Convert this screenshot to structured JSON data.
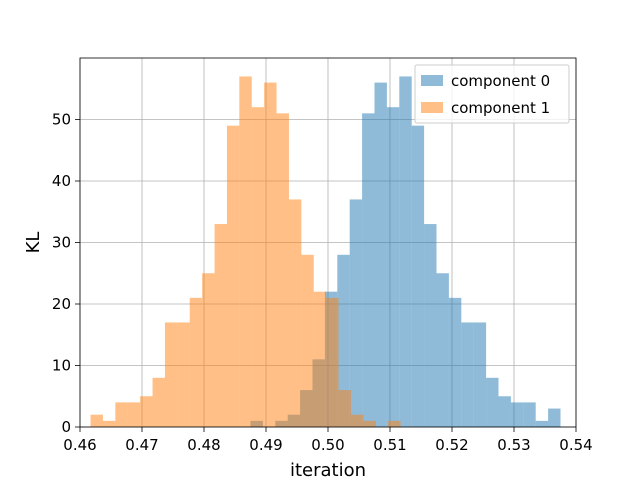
{
  "chart_data": {
    "type": "histogram",
    "title": "",
    "xlabel": "iteration",
    "ylabel": "KL",
    "xlim": [
      0.46,
      0.54
    ],
    "ylim": [
      0,
      60
    ],
    "xticks": [
      0.46,
      0.47,
      0.48,
      0.49,
      0.5,
      0.51,
      0.52,
      0.53,
      0.54
    ],
    "xtick_labels": [
      "0.46",
      "0.47",
      "0.48",
      "0.49",
      "0.50",
      "0.51",
      "0.52",
      "0.53",
      "0.54"
    ],
    "yticks": [
      0,
      10,
      20,
      30,
      40,
      50
    ],
    "ytick_labels": [
      "0",
      "10",
      "20",
      "30",
      "40",
      "50"
    ],
    "grid": true,
    "legend_position": "top-right",
    "series": [
      {
        "name": "component 0",
        "color": "#1f77b4",
        "opacity": 0.5,
        "bins": [
          [
            0.4875,
            0.4895,
            1
          ],
          [
            0.4895,
            0.4915,
            0
          ],
          [
            0.4915,
            0.4935,
            1
          ],
          [
            0.4935,
            0.4955,
            2
          ],
          [
            0.4955,
            0.4975,
            6
          ],
          [
            0.4975,
            0.4995,
            11
          ],
          [
            0.4995,
            0.5015,
            22
          ],
          [
            0.5015,
            0.5035,
            28
          ],
          [
            0.5035,
            0.5055,
            37
          ],
          [
            0.5055,
            0.5075,
            51
          ],
          [
            0.5075,
            0.5095,
            56
          ],
          [
            0.5095,
            0.5115,
            52
          ],
          [
            0.5115,
            0.5135,
            57
          ],
          [
            0.5135,
            0.5155,
            49
          ],
          [
            0.5155,
            0.5175,
            33
          ],
          [
            0.5175,
            0.5195,
            25
          ],
          [
            0.5195,
            0.5215,
            21
          ],
          [
            0.5215,
            0.5235,
            17
          ],
          [
            0.5235,
            0.5255,
            17
          ],
          [
            0.5255,
            0.5275,
            8
          ],
          [
            0.5275,
            0.5295,
            5
          ],
          [
            0.5295,
            0.5315,
            4
          ],
          [
            0.5315,
            0.5335,
            4
          ],
          [
            0.5335,
            0.5355,
            1
          ],
          [
            0.5355,
            0.5375,
            3
          ]
        ]
      },
      {
        "name": "component 1",
        "color": "#ff7f0e",
        "opacity": 0.5,
        "bins": [
          [
            0.4617,
            0.4637,
            2
          ],
          [
            0.4637,
            0.4657,
            1
          ],
          [
            0.4657,
            0.4677,
            4
          ],
          [
            0.4677,
            0.4697,
            4
          ],
          [
            0.4697,
            0.4717,
            5
          ],
          [
            0.4717,
            0.4737,
            8
          ],
          [
            0.4737,
            0.4757,
            17
          ],
          [
            0.4757,
            0.4777,
            17
          ],
          [
            0.4777,
            0.4797,
            21
          ],
          [
            0.4797,
            0.4817,
            25
          ],
          [
            0.4817,
            0.4837,
            33
          ],
          [
            0.4837,
            0.4857,
            49
          ],
          [
            0.4857,
            0.4877,
            57
          ],
          [
            0.4877,
            0.4897,
            52
          ],
          [
            0.4897,
            0.4917,
            56
          ],
          [
            0.4917,
            0.4937,
            51
          ],
          [
            0.4937,
            0.4957,
            37
          ],
          [
            0.4957,
            0.4977,
            28
          ],
          [
            0.4977,
            0.4997,
            22
          ],
          [
            0.4997,
            0.5017,
            21
          ],
          [
            0.5017,
            0.5037,
            6
          ],
          [
            0.5037,
            0.5057,
            2
          ],
          [
            0.5057,
            0.5077,
            1
          ],
          [
            0.5077,
            0.5097,
            0
          ],
          [
            0.5097,
            0.5117,
            1
          ]
        ]
      }
    ]
  }
}
